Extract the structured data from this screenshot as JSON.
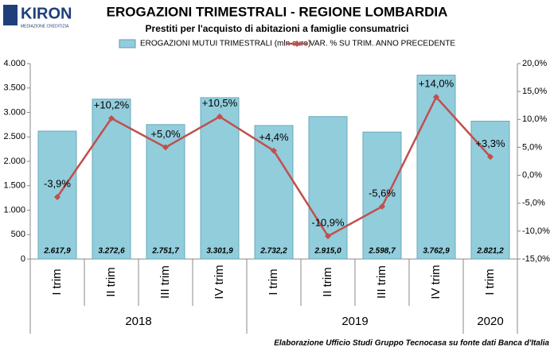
{
  "logo": {
    "name": "KIRON",
    "tagline": "MEDIAZIONE CREDITIZIA"
  },
  "chart_data": {
    "type": "bar_line",
    "title": "EROGAZIONI TRIMESTRALI - REGIONE LOMBARDIA",
    "subtitle": "Prestiti per l'acquisto di abitazioni a famiglie consumatrici",
    "groups": [
      {
        "label": "2018",
        "categories": [
          "I trim",
          "II trim",
          "III trim",
          "IV trim"
        ]
      },
      {
        "label": "2019",
        "categories": [
          "I trim",
          "II trim",
          "III trim",
          "IV trim"
        ]
      },
      {
        "label": "2020",
        "categories": [
          "I trim"
        ]
      }
    ],
    "series": [
      {
        "name": "EROGAZIONI MUTUI TRIMESTRALI (mln euro)",
        "type": "bar",
        "color": "#92cddc",
        "values": [
          2617.9,
          3272.6,
          2751.7,
          3301.9,
          2732.2,
          2915.0,
          2598.7,
          3762.9,
          2821.2
        ],
        "value_labels": [
          "2.617,9",
          "3.272,6",
          "2.751,7",
          "3.301,9",
          "2.732,2",
          "2.915,0",
          "2.598,7",
          "3.762,9",
          "2.821,2"
        ]
      },
      {
        "name": "VAR. % SU TRIM. ANNO PRECEDENTE",
        "type": "line",
        "axis": "y2",
        "color": "#c0504d",
        "values": [
          -3.9,
          10.2,
          5.0,
          10.5,
          4.4,
          -10.9,
          -5.6,
          14.0,
          3.3
        ],
        "value_labels": [
          "-3,9%",
          "+10,2%",
          "+5,0%",
          "+10,5%",
          "+4,4%",
          "-10,9%",
          "-5,6%",
          "+14,0%",
          "+3,3%"
        ]
      }
    ],
    "ylim": [
      0,
      4000
    ],
    "yticks": [
      0,
      500,
      {
        "value": 1000,
        "label": "1.000"
      },
      {
        "value": 1500,
        "label": "1.500"
      },
      {
        "value": 2000,
        "label": "2.000"
      },
      {
        "value": 2500,
        "label": "2.500"
      },
      {
        "value": 3000,
        "label": "3.000"
      },
      {
        "value": 3500,
        "label": "3.500"
      },
      {
        "value": 4000,
        "label": "4.000"
      }
    ],
    "y2lim": [
      -15,
      20
    ],
    "y2ticks": [
      {
        "value": -15,
        "label": "-15,0%"
      },
      {
        "value": -10,
        "label": "-10,0%"
      },
      {
        "value": -5,
        "label": "-5,0%"
      },
      {
        "value": 0,
        "label": "0,0%"
      },
      {
        "value": 5,
        "label": "5,0%"
      },
      {
        "value": 10,
        "label": "10,0%"
      },
      {
        "value": 15,
        "label": "15,0%"
      },
      {
        "value": 20,
        "label": "20,0%"
      }
    ],
    "grid": false,
    "note": "Elaborazione Ufficio Studi Gruppo Tecnocasa su fonte dati Banca d'Italia"
  }
}
